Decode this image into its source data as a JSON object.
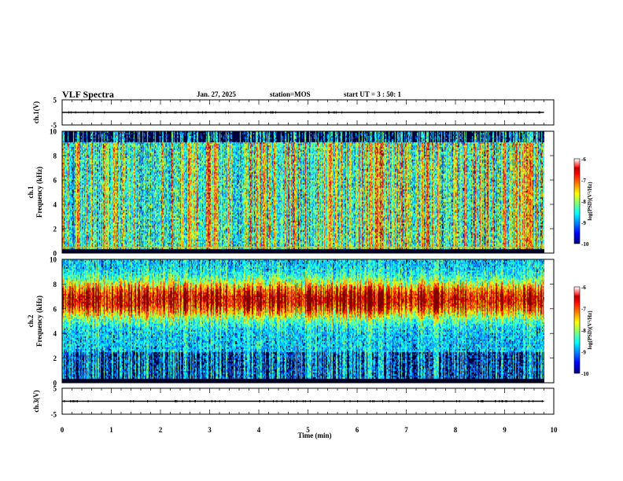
{
  "header": {
    "title": "VLF Spectra",
    "date": "Jan. 27, 2025",
    "station": "station=MOS",
    "start_ut": "start UT =  3 : 50: 1"
  },
  "chart_data": [
    {
      "type": "line",
      "panel": "ch1-waveform",
      "ylabel": "ch.1(V)",
      "ylim": [
        -5,
        5
      ],
      "yticks": [
        "5",
        "-5"
      ],
      "x": [
        0,
        9.8
      ],
      "values": [
        0,
        0
      ]
    },
    {
      "type": "heatmap",
      "panel": "ch1-spectrogram",
      "ylabel": "ch.1\nFrequency (kHz)",
      "ylim": [
        0,
        10
      ],
      "yticks": [
        "0",
        "2",
        "4",
        "6",
        "8",
        "10"
      ],
      "xlim": [
        0,
        9.8
      ],
      "colorbar": {
        "label": "log(PSD)(V²/Hz)",
        "range": [
          -10,
          -6
        ],
        "ticks": [
          "-6",
          "-7",
          "-8",
          "-9",
          "-10"
        ]
      }
    },
    {
      "type": "heatmap",
      "panel": "ch2-spectrogram",
      "ylabel": "ch.2\nFrequency (kHz)",
      "ylim": [
        0,
        10
      ],
      "yticks": [
        "0",
        "2",
        "4",
        "6",
        "8",
        "10"
      ],
      "xlim": [
        0,
        9.8
      ],
      "colorbar": {
        "label": "log(PSD)(V²/Hz)",
        "range": [
          -10,
          -6
        ],
        "ticks": [
          "-6",
          "-7",
          "-8",
          "-9",
          "-10"
        ]
      }
    },
    {
      "type": "line",
      "panel": "ch3-waveform",
      "ylabel": "ch.3(V)",
      "ylim": [
        -5,
        5
      ],
      "yticks": [
        "5",
        "-5"
      ],
      "x": [
        0,
        9.8
      ],
      "values": [
        0,
        0
      ]
    }
  ],
  "xaxis": {
    "label": "Time (min)",
    "xlim": [
      0,
      10
    ],
    "ticks": [
      "0",
      "1",
      "2",
      "3",
      "4",
      "5",
      "6",
      "7",
      "8",
      "9",
      "10"
    ]
  }
}
